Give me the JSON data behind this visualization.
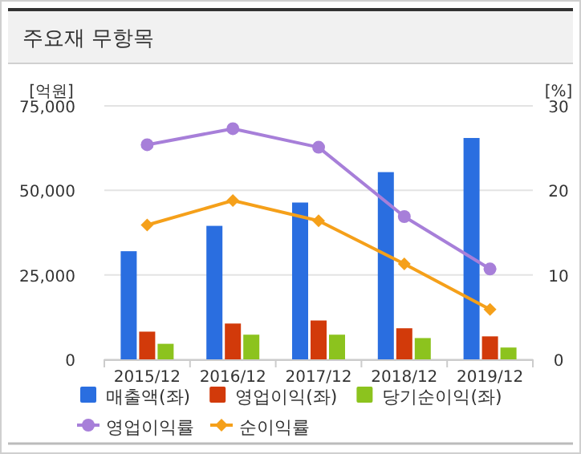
{
  "chart_data": {
    "type": "bar",
    "title": "주요재 무항목",
    "ylabel": "[억원]",
    "y2label": "[%]",
    "categories": [
      "2015/12",
      "2016/12",
      "2017/12",
      "2018/12",
      "2019/12"
    ],
    "series": [
      {
        "name": "매출액(좌)",
        "color": "#2a6ee0",
        "values": [
          32000,
          39500,
          46400,
          55400,
          65500
        ]
      },
      {
        "name": "영업이익(좌)",
        "color": "#d23a0a",
        "values": [
          8200,
          10600,
          11500,
          9200,
          6800
        ]
      },
      {
        "name": "당기순이익(좌)",
        "color": "#8cc31e",
        "values": [
          4600,
          7300,
          7300,
          6300,
          3500
        ]
      },
      {
        "name": "영업이익률",
        "type": "line",
        "axis": "y2",
        "marker": "circle",
        "color": "#a77fd9",
        "values": [
          25.4,
          27.3,
          25.1,
          16.9,
          10.7
        ]
      },
      {
        "name": "순이익률",
        "type": "line",
        "axis": "y2",
        "marker": "diamond",
        "color": "#f5a01a",
        "values": [
          15.9,
          18.8,
          16.4,
          11.3,
          5.9
        ]
      }
    ],
    "ylim": [
      0,
      75000
    ],
    "yticks": [
      0,
      {
        "value": 25000,
        "label": "25,000"
      },
      {
        "value": 50000,
        "label": "50,000"
      },
      {
        "value": 75000,
        "label": "75,000"
      }
    ],
    "y2lim": [
      0,
      30
    ],
    "y2ticks": [
      0,
      10,
      20,
      30
    ],
    "grid": "y",
    "legend": "bottom"
  }
}
